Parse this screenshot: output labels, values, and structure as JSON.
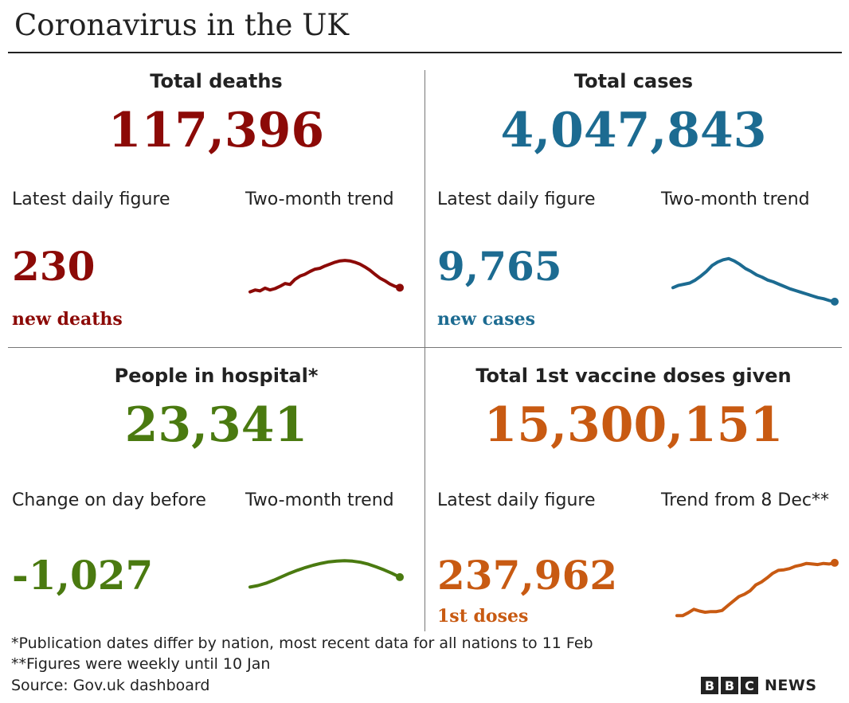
{
  "title": "Coronavirus in the UK",
  "panels": {
    "deaths": {
      "title": "Total deaths",
      "value": "117,396",
      "left_label": "Latest daily figure",
      "right_label": "Two-month trend",
      "daily": "230",
      "daily_unit": "new deaths",
      "color": "#8c0a07"
    },
    "cases": {
      "title": "Total cases",
      "value": "4,047,843",
      "left_label": "Latest daily figure",
      "right_label": "Two-month trend",
      "daily": "9,765",
      "daily_unit": "new cases",
      "color": "#1c6b91"
    },
    "hospital": {
      "title": "People in hospital*",
      "value": "23,341",
      "left_label": "Change on day before",
      "right_label": "Two-month trend",
      "daily": "-1,027",
      "color": "#4a7a10"
    },
    "vaccine": {
      "title": "Total 1st vaccine doses given",
      "value": "15,300,151",
      "left_label": "Latest daily figure",
      "right_label": "Trend from 8 Dec**",
      "daily": "237,962",
      "daily_unit": "1st doses",
      "color": "#c85a12"
    }
  },
  "chart_data": [
    {
      "type": "line",
      "series": [
        {
          "values": [
            0.18,
            0.22,
            0.2,
            0.26,
            0.22,
            0.25,
            0.3,
            0.36,
            0.34,
            0.45,
            0.52,
            0.56,
            0.62,
            0.67,
            0.69,
            0.74,
            0.78,
            0.82,
            0.85,
            0.86,
            0.85,
            0.82,
            0.78,
            0.72,
            0.65,
            0.56,
            0.48,
            0.42,
            0.35,
            0.3,
            0.27
          ]
        }
      ]
    },
    {
      "type": "line",
      "series": [
        {
          "values": [
            0.42,
            0.46,
            0.48,
            0.5,
            0.55,
            0.62,
            0.7,
            0.8,
            0.86,
            0.9,
            0.92,
            0.88,
            0.82,
            0.75,
            0.7,
            0.64,
            0.6,
            0.55,
            0.52,
            0.48,
            0.44,
            0.4,
            0.37,
            0.34,
            0.31,
            0.28,
            0.25,
            0.23,
            0.2,
            0.18
          ]
        }
      ]
    },
    {
      "type": "line",
      "series": [
        {
          "values": [
            0.2,
            0.24,
            0.3,
            0.38,
            0.47,
            0.56,
            0.64,
            0.71,
            0.77,
            0.82,
            0.86,
            0.88,
            0.89,
            0.88,
            0.85,
            0.8,
            0.73,
            0.65,
            0.56,
            0.46
          ]
        }
      ]
    },
    {
      "type": "line",
      "series": [
        {
          "values": [
            0.05,
            0.05,
            0.1,
            0.16,
            0.13,
            0.11,
            0.12,
            0.12,
            0.14,
            0.22,
            0.3,
            0.38,
            0.42,
            0.48,
            0.58,
            0.63,
            0.7,
            0.78,
            0.83,
            0.84,
            0.86,
            0.9,
            0.92,
            0.95,
            0.94,
            0.93,
            0.95,
            0.94,
            0.96
          ]
        }
      ]
    }
  ],
  "footnotes": [
    "*Publication dates differ by nation, most recent data for all nations to 11 Feb",
    "**Figures were weekly until 10 Jan",
    "Source: Gov.uk dashboard"
  ],
  "logo": {
    "letters": [
      "B",
      "B",
      "C"
    ],
    "text": "NEWS"
  }
}
